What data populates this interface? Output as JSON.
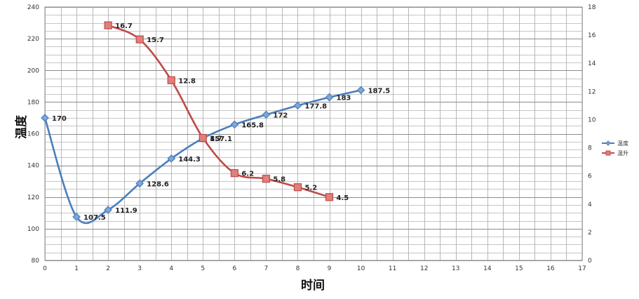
{
  "chart_data": {
    "type": "line",
    "xlabel": "时间",
    "ylabel": "温度",
    "xlim": [
      0,
      17
    ],
    "ylim": [
      80,
      240
    ],
    "y2lim": [
      0,
      18
    ],
    "x_ticks": [
      0,
      1,
      2,
      3,
      4,
      5,
      6,
      7,
      8,
      9,
      10,
      11,
      12,
      13,
      14,
      15,
      16,
      17
    ],
    "y_ticks": [
      80,
      100,
      120,
      140,
      160,
      180,
      200,
      220,
      240
    ],
    "y2_ticks": [
      0,
      2,
      4,
      6,
      8,
      10,
      12,
      14,
      16,
      18
    ],
    "grid": true,
    "legend_position": "right",
    "series": [
      {
        "name": "温度",
        "axis": "left",
        "color": "#4a7ebb",
        "marker": "diamond",
        "smooth": true,
        "x": [
          0,
          1,
          2,
          3,
          4,
          5,
          6,
          7,
          8,
          9,
          10
        ],
        "values": [
          170,
          107.5,
          111.9,
          128.6,
          144.3,
          157.1,
          165.8,
          172,
          177.8,
          183,
          187.5
        ],
        "labels": [
          "170",
          "107.5",
          "111.9",
          "128.6",
          "144.3",
          "157.1",
          "165.8",
          "172",
          "177.8",
          "183",
          "187.5"
        ]
      },
      {
        "name": "温升",
        "axis": "right",
        "color": "#be4b48",
        "marker": "square",
        "smooth": true,
        "x": [
          2,
          3,
          4,
          5,
          6,
          7,
          8,
          9
        ],
        "values": [
          16.7,
          15.7,
          12.8,
          8.7,
          6.2,
          5.8,
          5.2,
          4.5
        ],
        "labels": [
          "16.7",
          "15.7",
          "12.8",
          "8.7",
          "6.2",
          "5.8",
          "5.2",
          "4.5"
        ]
      }
    ]
  }
}
